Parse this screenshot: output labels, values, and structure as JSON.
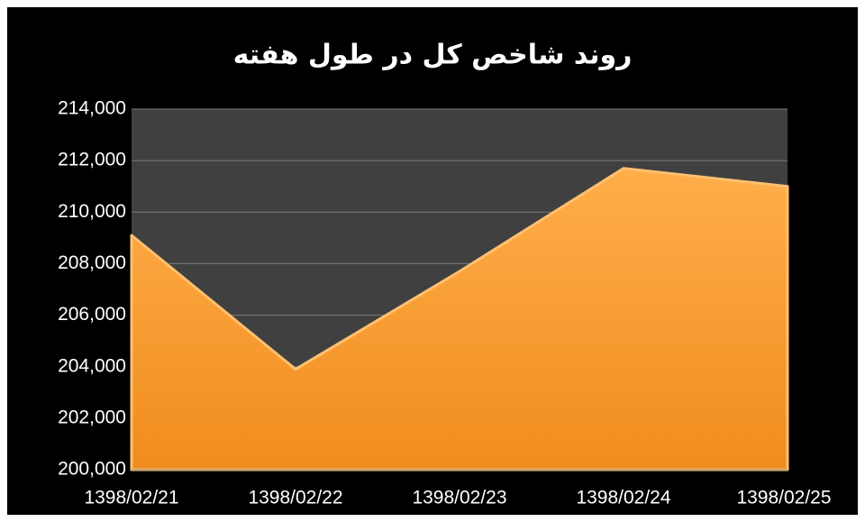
{
  "chart_data": {
    "type": "area",
    "title": "روند شاخص کل در طول هفته",
    "categories": [
      "1398/02/21",
      "1398/02/22",
      "1398/02/23",
      "1398/02/24",
      "1398/02/25"
    ],
    "values": [
      209100,
      203900,
      207700,
      211700,
      211000
    ],
    "color": "#f99a2e",
    "ylim": [
      200000,
      214000
    ],
    "yticks": [
      {
        "value": 200000,
        "label": "200,000"
      },
      {
        "value": 202000,
        "label": "202,000"
      },
      {
        "value": 204000,
        "label": "204,000"
      },
      {
        "value": 206000,
        "label": "206,000"
      },
      {
        "value": 208000,
        "label": "208,000"
      },
      {
        "value": 210000,
        "label": "210,000"
      },
      {
        "value": 212000,
        "label": "212,000"
      },
      {
        "value": 214000,
        "label": "214,000"
      }
    ],
    "grid": true
  }
}
